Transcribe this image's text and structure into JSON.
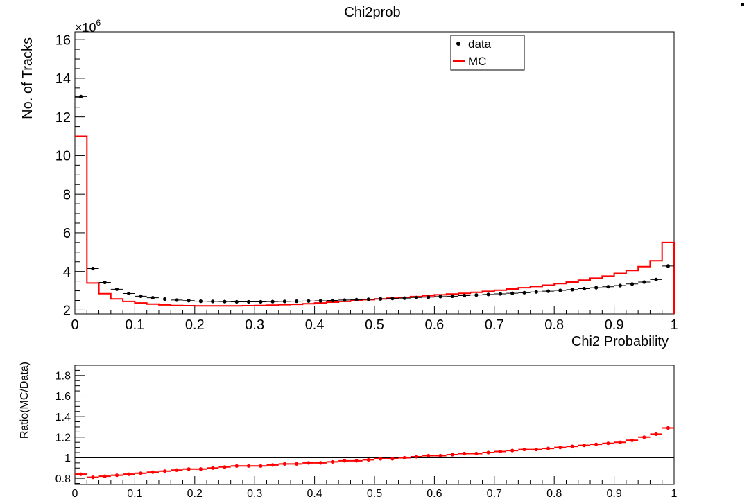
{
  "chart_data": [
    {
      "type": "line",
      "title": "Chi2prob",
      "xlabel": "Chi2 Probability",
      "ylabel": "No. of Tracks",
      "y_multiplier_label": "×10",
      "y_multiplier_exponent": "6",
      "xlim": [
        0,
        1
      ],
      "ylim": [
        1.8,
        16.4
      ],
      "x_ticks": [
        0,
        0.1,
        0.2,
        0.3,
        0.4,
        0.5,
        0.6,
        0.7,
        0.8,
        0.9,
        1
      ],
      "x_tick_labels": [
        "0",
        "0.1",
        "0.2",
        "0.3",
        "0.4",
        "0.5",
        "0.6",
        "0.7",
        "0.8",
        "0.9",
        "1"
      ],
      "y_ticks": [
        2,
        4,
        6,
        8,
        10,
        12,
        14,
        16
      ],
      "y_tick_labels": [
        "2",
        "4",
        "6",
        "8",
        "10",
        "12",
        "14",
        "16"
      ],
      "legend": {
        "placement": "top-right",
        "entries": [
          "data",
          "MC"
        ]
      },
      "grid": false,
      "bin_width": 0.02,
      "x": [
        0.01,
        0.03,
        0.05,
        0.07,
        0.09,
        0.11,
        0.13,
        0.15,
        0.17,
        0.19,
        0.21,
        0.23,
        0.25,
        0.27,
        0.29,
        0.31,
        0.33,
        0.35,
        0.37,
        0.39,
        0.41,
        0.43,
        0.45,
        0.47,
        0.49,
        0.51,
        0.53,
        0.55,
        0.57,
        0.59,
        0.61,
        0.63,
        0.65,
        0.67,
        0.69,
        0.71,
        0.73,
        0.75,
        0.77,
        0.79,
        0.81,
        0.83,
        0.85,
        0.87,
        0.89,
        0.91,
        0.93,
        0.95,
        0.97,
        0.99
      ],
      "series": [
        {
          "name": "data",
          "style": "markers",
          "color": "#000000",
          "values": [
            13.05,
            4.15,
            3.43,
            3.08,
            2.86,
            2.72,
            2.64,
            2.57,
            2.52,
            2.49,
            2.46,
            2.45,
            2.44,
            2.43,
            2.43,
            2.43,
            2.44,
            2.45,
            2.46,
            2.47,
            2.48,
            2.5,
            2.52,
            2.54,
            2.56,
            2.58,
            2.6,
            2.62,
            2.65,
            2.67,
            2.7,
            2.72,
            2.75,
            2.78,
            2.81,
            2.84,
            2.87,
            2.9,
            2.94,
            2.98,
            3.02,
            3.06,
            3.11,
            3.16,
            3.21,
            3.27,
            3.35,
            3.45,
            3.58,
            4.28
          ]
        },
        {
          "name": "MC",
          "style": "step",
          "color": "#ff0000",
          "values": [
            11.0,
            3.4,
            2.85,
            2.58,
            2.45,
            2.37,
            2.31,
            2.27,
            2.24,
            2.23,
            2.22,
            2.22,
            2.22,
            2.22,
            2.23,
            2.24,
            2.26,
            2.28,
            2.3,
            2.33,
            2.37,
            2.41,
            2.45,
            2.49,
            2.54,
            2.58,
            2.62,
            2.66,
            2.7,
            2.74,
            2.79,
            2.83,
            2.87,
            2.92,
            2.97,
            3.03,
            3.09,
            3.16,
            3.22,
            3.29,
            3.37,
            3.45,
            3.55,
            3.65,
            3.76,
            3.9,
            4.05,
            4.25,
            4.55,
            5.5
          ]
        }
      ]
    },
    {
      "type": "scatter",
      "xlabel": "",
      "ylabel": "Ratio(MC/Data)",
      "xlim": [
        0,
        1
      ],
      "ylim": [
        0.74,
        1.9
      ],
      "x_ticks": [
        0,
        0.1,
        0.2,
        0.3,
        0.4,
        0.5,
        0.6,
        0.7,
        0.8,
        0.9,
        1
      ],
      "x_tick_labels": [
        "0",
        "0.1",
        "0.2",
        "0.3",
        "0.4",
        "0.5",
        "0.6",
        "0.7",
        "0.8",
        "0.9",
        "1"
      ],
      "y_ticks": [
        0.8,
        1,
        1.2,
        1.4,
        1.6,
        1.8
      ],
      "y_tick_labels": [
        "0.8",
        "1",
        "1.2",
        "1.4",
        "1.6",
        "1.8"
      ],
      "reference_line": 1,
      "grid": false,
      "bin_width": 0.02,
      "x": [
        0.01,
        0.03,
        0.05,
        0.07,
        0.09,
        0.11,
        0.13,
        0.15,
        0.17,
        0.19,
        0.21,
        0.23,
        0.25,
        0.27,
        0.29,
        0.31,
        0.33,
        0.35,
        0.37,
        0.39,
        0.41,
        0.43,
        0.45,
        0.47,
        0.49,
        0.51,
        0.53,
        0.55,
        0.57,
        0.59,
        0.61,
        0.63,
        0.65,
        0.67,
        0.69,
        0.71,
        0.73,
        0.75,
        0.77,
        0.79,
        0.81,
        0.83,
        0.85,
        0.87,
        0.89,
        0.91,
        0.93,
        0.95,
        0.97,
        0.99
      ],
      "series": [
        {
          "name": "",
          "color": "#ff0000",
          "values": [
            0.84,
            0.81,
            0.82,
            0.83,
            0.84,
            0.85,
            0.86,
            0.87,
            0.88,
            0.89,
            0.89,
            0.9,
            0.91,
            0.92,
            0.92,
            0.92,
            0.93,
            0.94,
            0.94,
            0.95,
            0.95,
            0.96,
            0.97,
            0.97,
            0.98,
            0.99,
            0.99,
            1.0,
            1.01,
            1.02,
            1.02,
            1.03,
            1.04,
            1.04,
            1.05,
            1.06,
            1.07,
            1.08,
            1.08,
            1.09,
            1.1,
            1.11,
            1.12,
            1.13,
            1.14,
            1.15,
            1.17,
            1.2,
            1.23,
            1.29
          ]
        }
      ]
    }
  ]
}
